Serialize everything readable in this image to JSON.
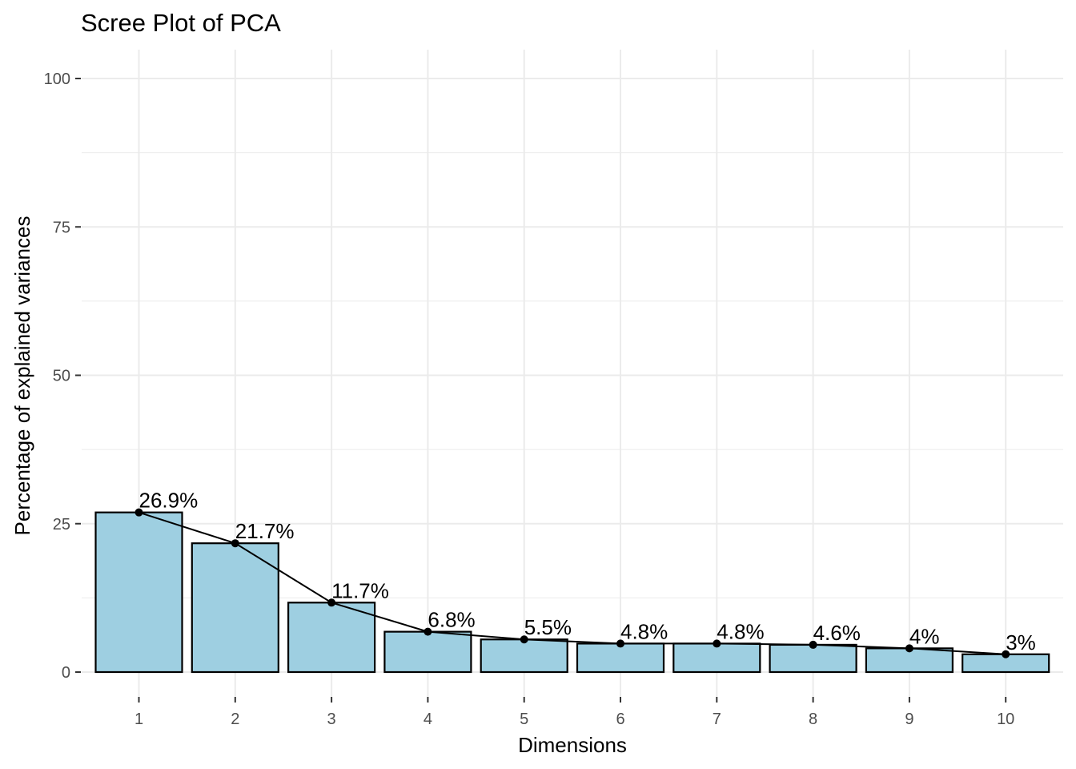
{
  "chart_data": {
    "type": "bar",
    "title": "Scree Plot of PCA",
    "xlabel": "Dimensions",
    "ylabel": "Percentage of explained variances",
    "categories": [
      "1",
      "2",
      "3",
      "4",
      "5",
      "6",
      "7",
      "8",
      "9",
      "10"
    ],
    "values": [
      26.9,
      21.7,
      11.7,
      6.8,
      5.5,
      4.8,
      4.8,
      4.6,
      4.0,
      3.0
    ],
    "labels": [
      "26.9%",
      "21.7%",
      "11.7%",
      "6.8%",
      "5.5%",
      "4.8%",
      "4.8%",
      "4.6%",
      "4%",
      "3%"
    ],
    "ylim": [
      0,
      100
    ],
    "yticks": [
      0,
      25,
      50,
      75,
      100
    ],
    "overlay_line": true,
    "grid": true,
    "colors": {
      "bar_fill": "#9ecfe1",
      "bar_stroke": "#000000",
      "line": "#000000",
      "grid": "#ebebeb"
    }
  }
}
